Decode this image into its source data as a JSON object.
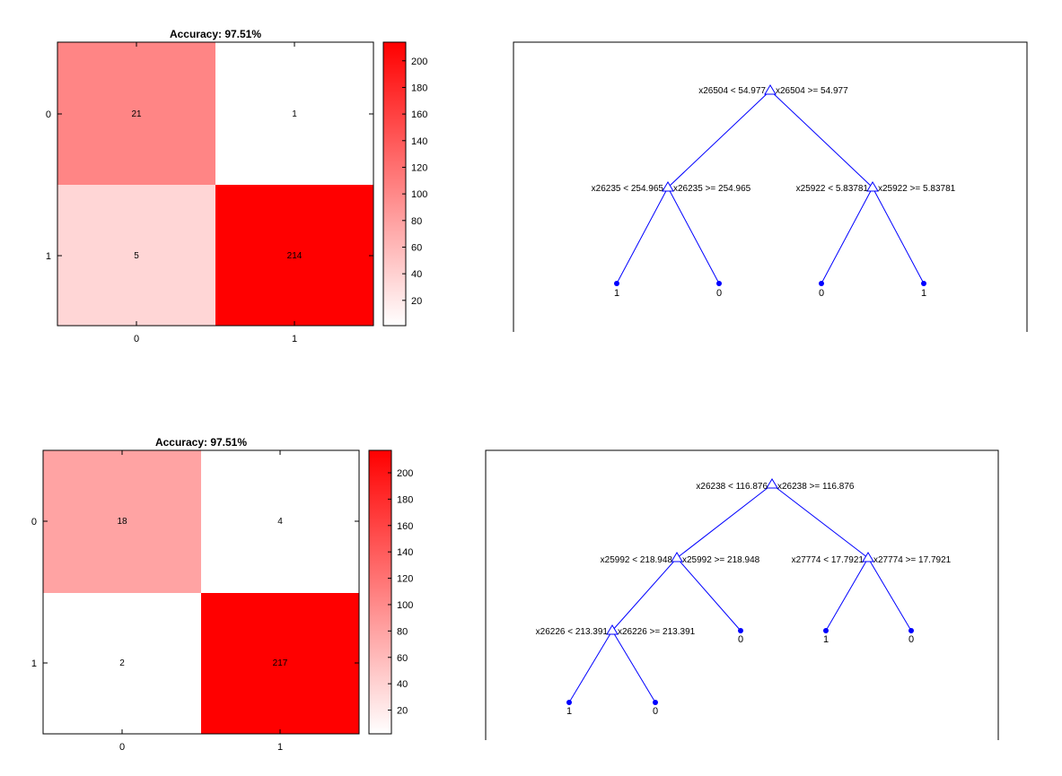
{
  "chart_data": [
    {
      "type": "heatmap",
      "title": "Accuracy: 97.51%",
      "row_labels": [
        "0",
        "1"
      ],
      "col_labels": [
        "0",
        "1"
      ],
      "values": [
        [
          21,
          1
        ],
        [
          5,
          214
        ]
      ],
      "colorbar": {
        "ticks": [
          "20",
          "40",
          "60",
          "80",
          "100",
          "120",
          "140",
          "160",
          "180",
          "200"
        ],
        "range": [
          1,
          214
        ]
      },
      "colors": {
        "high": "#ff0000",
        "low": "#ffffff"
      }
    },
    {
      "type": "table",
      "chart_kind": "decision-tree",
      "nodes": [
        {
          "id": "n1",
          "left_label": "x26504 < 54.977",
          "right_label": "x26504 >= 54.977"
        },
        {
          "id": "n2",
          "parent": "n1",
          "left_label": "x26235 < 254.965",
          "right_label": "x26235 >= 254.965"
        },
        {
          "id": "n3",
          "parent": "n1",
          "left_label": "x25922 < 5.83781",
          "right_label": "x25922 >= 5.83781"
        },
        {
          "id": "l1",
          "parent": "n2",
          "leaf": "1"
        },
        {
          "id": "l2",
          "parent": "n2",
          "leaf": "0"
        },
        {
          "id": "l3",
          "parent": "n3",
          "leaf": "0"
        },
        {
          "id": "l4",
          "parent": "n3",
          "leaf": "1"
        }
      ],
      "colors": {
        "line": "#0000ff"
      }
    },
    {
      "type": "heatmap",
      "title": "Accuracy: 97.51%",
      "row_labels": [
        "0",
        "1"
      ],
      "col_labels": [
        "0",
        "1"
      ],
      "values": [
        [
          18,
          4
        ],
        [
          2,
          217
        ]
      ],
      "colorbar": {
        "ticks": [
          "20",
          "40",
          "60",
          "80",
          "100",
          "120",
          "140",
          "160",
          "180",
          "200"
        ],
        "range": [
          2,
          217
        ]
      },
      "colors": {
        "high": "#ff0000",
        "low": "#ffffff"
      }
    },
    {
      "type": "table",
      "chart_kind": "decision-tree",
      "nodes": [
        {
          "id": "n1",
          "left_label": "x26238 < 116.876",
          "right_label": "x26238 >= 116.876"
        },
        {
          "id": "n2",
          "parent": "n1",
          "left_label": "x25992 < 218.948",
          "right_label": "x25992 >= 218.948"
        },
        {
          "id": "n3",
          "parent": "n1",
          "left_label": "x27774 < 17.7921",
          "right_label": "x27774 >= 17.7921"
        },
        {
          "id": "n4",
          "parent": "n2",
          "left_label": "x26226 < 213.391",
          "right_label": "x26226 >= 213.391"
        },
        {
          "id": "l1",
          "parent": "n2",
          "leaf": "0"
        },
        {
          "id": "l2",
          "parent": "n3",
          "leaf": "1"
        },
        {
          "id": "l3",
          "parent": "n3",
          "leaf": "0"
        },
        {
          "id": "l4",
          "parent": "n4",
          "leaf": "1"
        },
        {
          "id": "l5",
          "parent": "n4",
          "leaf": "0"
        }
      ],
      "colors": {
        "line": "#0000ff"
      }
    }
  ]
}
